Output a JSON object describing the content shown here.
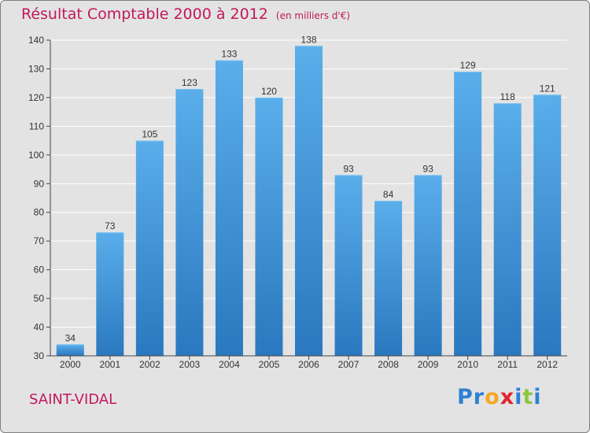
{
  "header": {
    "title": "Résultat Comptable 2000 à 2012",
    "subtitle": "(en milliers d'€)"
  },
  "footer": {
    "commune": "SAINT-VIDAL",
    "brand_letters": [
      "P",
      "r",
      "o",
      "x",
      "i",
      "t",
      "i"
    ],
    "brand_colors": [
      "#2e7fd6",
      "#2e7fd6",
      "#f5a623",
      "#e0242f",
      "#2e7fd6",
      "#8cc63f",
      "#2e7fd6"
    ]
  },
  "colors": {
    "bar_top": "#5aaeea",
    "bar_bottom": "#2a78bf",
    "gridline": "#ffffff",
    "axis": "#444444",
    "text": "#333333"
  },
  "chart_data": {
    "type": "bar",
    "title": "Résultat Comptable 2000 à 2012",
    "unit": "(en milliers d'€)",
    "categories": [
      "2000",
      "2001",
      "2002",
      "2003",
      "2004",
      "2005",
      "2006",
      "2007",
      "2008",
      "2009",
      "2010",
      "2011",
      "2012"
    ],
    "values": [
      34,
      73,
      105,
      123,
      133,
      120,
      138,
      93,
      84,
      93,
      129,
      118,
      121
    ],
    "ylim": [
      30,
      140
    ],
    "yticks": [
      30,
      40,
      50,
      60,
      70,
      80,
      90,
      100,
      110,
      120,
      130,
      140
    ],
    "xlabel": "",
    "ylabel": "",
    "grid": true
  }
}
